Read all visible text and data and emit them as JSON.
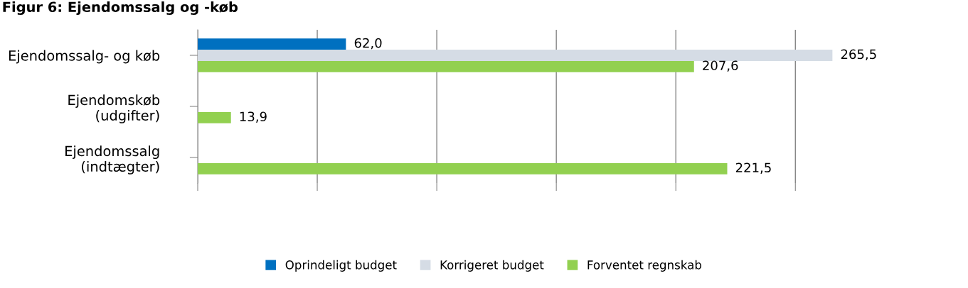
{
  "chart_data": {
    "type": "bar",
    "orientation": "horizontal",
    "title": "Figur 6: Ejendomssalg og -køb",
    "categories": [
      "Ejendomssalg- og køb",
      "Ejendomskøb\n(udgifter)",
      "Ejendomssalg\n(indtægter)"
    ],
    "series": [
      {
        "name": "Oprindeligt budget",
        "color": "#0070c0",
        "values": [
          62.0,
          null,
          null
        ],
        "value_labels": [
          "62,0",
          null,
          null
        ]
      },
      {
        "name": "Korrigeret budget",
        "color": "#d5dce5",
        "values": [
          265.5,
          null,
          null
        ],
        "value_labels": [
          "265,5",
          null,
          null
        ]
      },
      {
        "name": "Forventet regnskab",
        "color": "#92d050",
        "values": [
          207.6,
          13.9,
          221.5
        ],
        "value_labels": [
          "207,6",
          "13,9",
          "221,5"
        ]
      }
    ],
    "tick_labels": "y",
    "grid": "x",
    "legend": "bottom"
  }
}
